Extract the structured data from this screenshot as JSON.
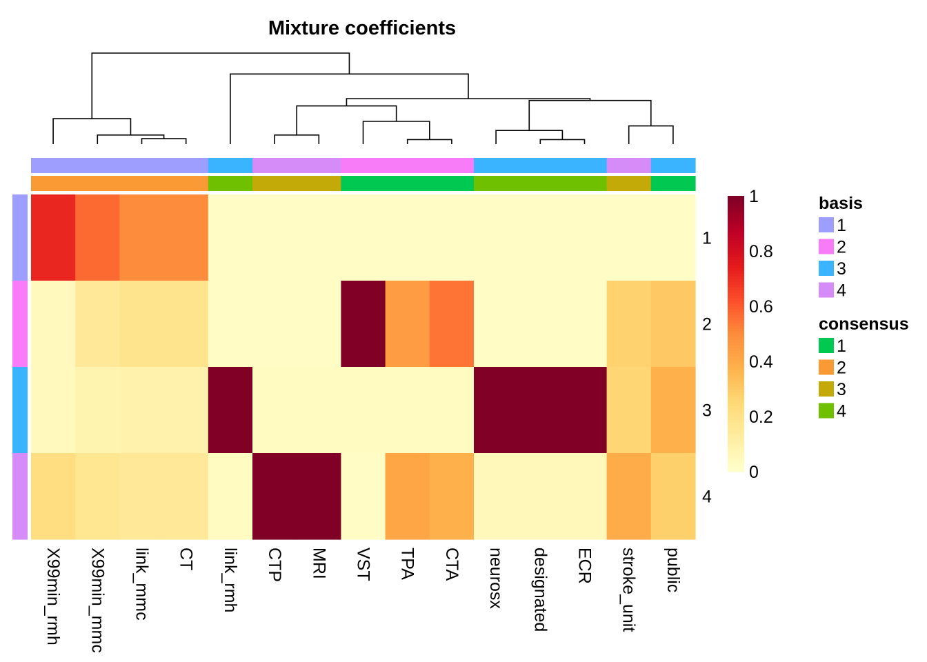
{
  "chart_data": {
    "type": "heatmap",
    "title": "Mixture coefficients",
    "columns": [
      "X99min_rmh",
      "X99min_mmc",
      "link_mmc",
      "CT",
      "link_rmh",
      "CTP",
      "MRI",
      "VST",
      "TPA",
      "CTA",
      "neurosx",
      "designated",
      "ECR",
      "stroke_unit",
      "public"
    ],
    "rows": [
      "1",
      "2",
      "3",
      "4"
    ],
    "values": [
      [
        0.72,
        0.57,
        0.5,
        0.5,
        0.02,
        0.02,
        0.02,
        0.02,
        0.02,
        0.02,
        0.02,
        0.02,
        0.02,
        0.02,
        0.02
      ],
      [
        0.04,
        0.15,
        0.18,
        0.18,
        0.02,
        0.02,
        0.02,
        1.0,
        0.45,
        0.55,
        0.02,
        0.02,
        0.02,
        0.27,
        0.3
      ],
      [
        0.04,
        0.08,
        0.09,
        0.09,
        1.0,
        0.03,
        0.03,
        0.03,
        0.03,
        0.03,
        1.0,
        1.0,
        1.0,
        0.26,
        0.38
      ],
      [
        0.22,
        0.17,
        0.15,
        0.15,
        0.03,
        1.0,
        1.0,
        0.02,
        0.42,
        0.38,
        0.05,
        0.05,
        0.05,
        0.4,
        0.28
      ]
    ],
    "color_scale": {
      "min": 0,
      "max": 1,
      "ticks": [
        "0",
        "0.2",
        "0.4",
        "0.6",
        "0.8",
        "1"
      ],
      "colors": [
        "#FFFFCC",
        "#FFEDA0",
        "#FED976",
        "#FEB24C",
        "#FD8D3C",
        "#FC4E2A",
        "#E31A1C",
        "#BD0026",
        "#800026"
      ]
    },
    "column_annotations": {
      "basis": [
        1,
        1,
        1,
        1,
        3,
        4,
        4,
        2,
        2,
        2,
        3,
        3,
        3,
        4,
        3
      ],
      "consensus": [
        2,
        2,
        2,
        2,
        4,
        3,
        3,
        1,
        1,
        1,
        4,
        4,
        4,
        3,
        1
      ]
    },
    "row_annotations": {
      "basis": [
        1,
        2,
        3,
        4
      ]
    },
    "legends": [
      {
        "title": "basis",
        "items": [
          {
            "label": "1",
            "color": "#9E9EFF"
          },
          {
            "label": "2",
            "color": "#F87CF8"
          },
          {
            "label": "3",
            "color": "#3BB4FF"
          },
          {
            "label": "4",
            "color": "#D58CF8"
          }
        ]
      },
      {
        "title": "consensus",
        "items": [
          {
            "label": "1",
            "color": "#00C850"
          },
          {
            "label": "2",
            "color": "#F99A35"
          },
          {
            "label": "3",
            "color": "#C4AA08"
          },
          {
            "label": "4",
            "color": "#6EC000"
          }
        ]
      }
    ],
    "dendrogram_merges": [
      {
        "id": "m1",
        "left": "CTA",
        "right": "TPA",
        "height": 0.05
      },
      {
        "id": "m2",
        "left": "ECR",
        "right": "designated",
        "height": 0.05
      },
      {
        "id": "m3",
        "left": "CT",
        "right": "link_mmc",
        "height": 0.06
      },
      {
        "id": "m4",
        "left": "X99min_mmc",
        "right": "m3",
        "height": 0.1
      },
      {
        "id": "m5",
        "left": "CTP",
        "right": "MRI",
        "height": 0.1
      },
      {
        "id": "m6",
        "left": "stroke_unit",
        "right": "public",
        "height": 0.2
      },
      {
        "id": "m7",
        "left": "neurosx",
        "right": "m2",
        "height": 0.15
      },
      {
        "id": "m8",
        "left": "VST",
        "right": "m1",
        "height": 0.25
      },
      {
        "id": "m9",
        "left": "X99min_rmh",
        "right": "m4",
        "height": 0.28
      },
      {
        "id": "m10",
        "left": "m7",
        "right": "m6",
        "height": 0.48
      },
      {
        "id": "m11",
        "left": "m5",
        "right": "m8",
        "height": 0.42
      },
      {
        "id": "m12",
        "left": "m11",
        "right": "m10",
        "height": 0.5
      },
      {
        "id": "m13",
        "left": "link_rmh",
        "right": "m12",
        "height": 0.77
      },
      {
        "id": "m14",
        "left": "m9",
        "right": "m13",
        "height": 1.0
      }
    ]
  }
}
